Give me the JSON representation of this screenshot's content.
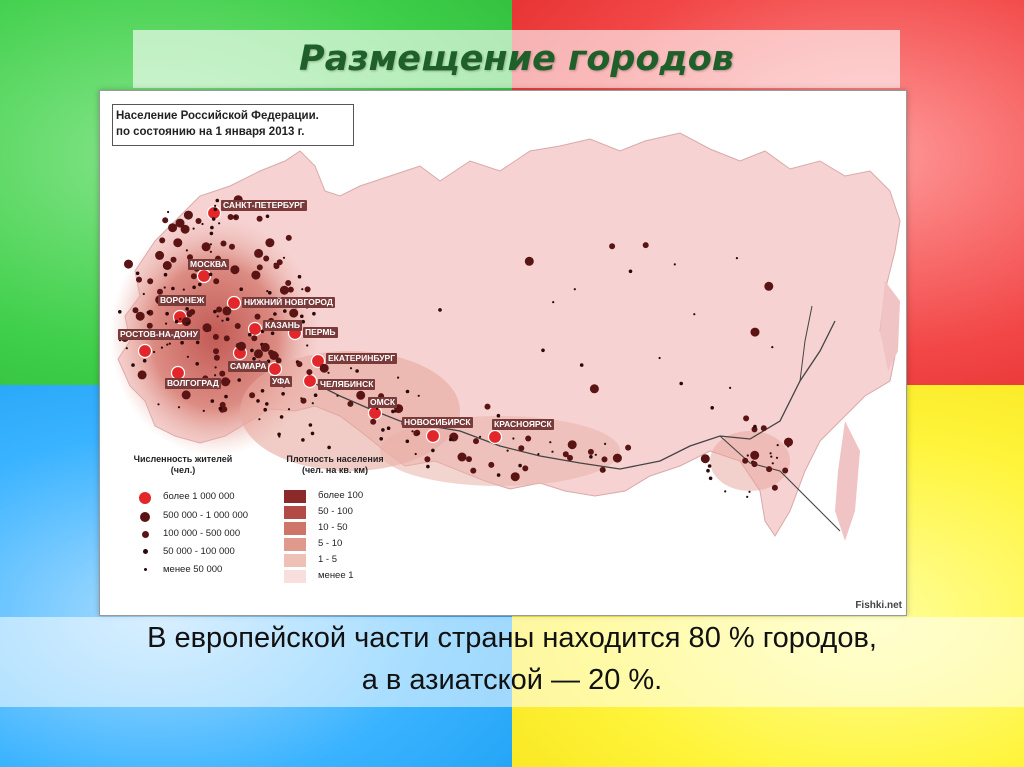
{
  "slide": {
    "title": "Размещение городов",
    "caption_line1": "В европейской части страны находится 80 % городов,",
    "caption_line2": "а в азиатской — 20 %."
  },
  "map": {
    "heading_line1": "Население Российской Федерации.",
    "heading_line2": "по состоянию на 1 января 2013 г.",
    "watermark": "Fishki.net",
    "cities": [
      "САНКТ-ПЕТЕРБУРГ",
      "МОСКВА",
      "ВОРОНЕЖ",
      "НИЖНИЙ НОВГОРОД",
      "РОСТОВ-НА-ДОНУ",
      "КАЗАНЬ",
      "ПЕРМЬ",
      "ЕКАТЕРИНБУРГ",
      "САМАРА",
      "УФА",
      "ЧЕЛЯБИНСК",
      "ВОЛГОГРАД",
      "ОМСК",
      "НОВОСИБИРСК",
      "КРАСНОЯРСК"
    ],
    "legend_population": {
      "title_line1": "Численность жителей",
      "title_line2": "(чел.)",
      "items": [
        "более 1 000 000",
        "500 000 - 1 000 000",
        "100 000 - 500 000",
        "50 000 - 100 000",
        "менее 50 000"
      ]
    },
    "legend_density": {
      "title_line1": "Плотность населения",
      "title_line2": "(чел. на кв. км)",
      "items": [
        "более 100",
        "50 - 100",
        "10 - 50",
        "5 - 10",
        "1 - 5",
        "менее 1"
      ],
      "colors": [
        "#8c2a2a",
        "#b24a45",
        "#cf7468",
        "#e09a8d",
        "#eec0b6",
        "#f8dedd"
      ]
    },
    "colors": {
      "land": "#f6d2d2",
      "city_dot": "#5a1414",
      "city_million": "#e3262a",
      "label_bg": "#7a3a3a"
    }
  }
}
